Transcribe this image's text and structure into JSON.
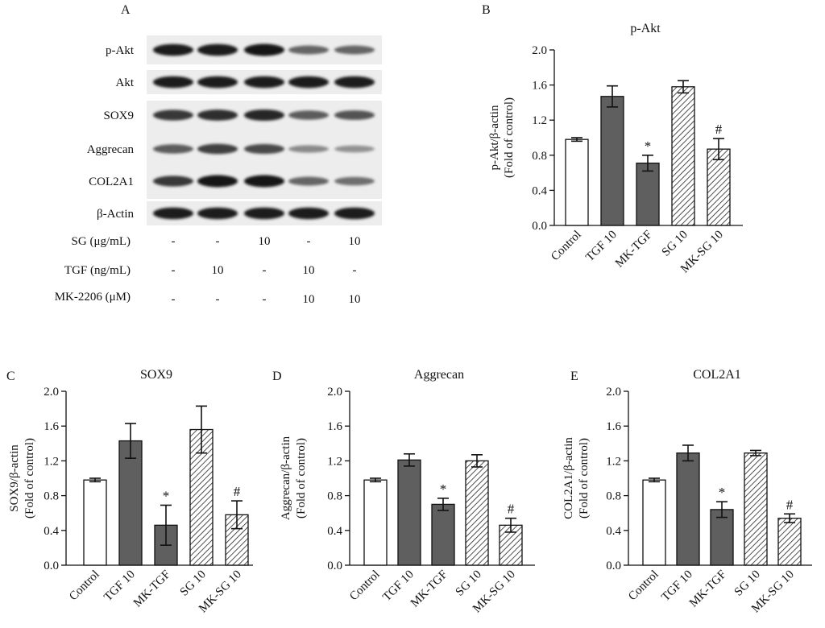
{
  "blot": {
    "panel_letter": "A",
    "rows": [
      {
        "label": "p-Akt",
        "intensity": [
          0.95,
          0.95,
          1.0,
          0.55,
          0.55
        ]
      },
      {
        "label": "Akt",
        "intensity": [
          0.95,
          0.95,
          0.95,
          0.95,
          0.95
        ]
      },
      {
        "label": "SOX9",
        "intensity": [
          0.8,
          0.85,
          0.9,
          0.6,
          0.65
        ]
      },
      {
        "label": "Aggrecan",
        "intensity": [
          0.6,
          0.75,
          0.7,
          0.35,
          0.3
        ]
      },
      {
        "label": "COL2A1",
        "intensity": [
          0.8,
          1.0,
          1.0,
          0.55,
          0.5
        ]
      },
      {
        "label": "β-Actin",
        "intensity": [
          0.95,
          0.95,
          0.95,
          0.95,
          0.95
        ]
      }
    ],
    "treatments": [
      {
        "label": "SG (μg/mL)",
        "values": [
          "-",
          "-",
          "10",
          "-",
          "10"
        ]
      },
      {
        "label": "TGF (ng/mL)",
        "values": [
          "-",
          "10",
          "-",
          "10",
          "-"
        ]
      },
      {
        "label": "MK-2206 (μM)",
        "values": [
          "-",
          "-",
          "-",
          "10",
          "10"
        ]
      }
    ]
  },
  "chart_data": [
    {
      "panel_letter": "B",
      "type": "bar",
      "title": "p-Akt",
      "ylabel_line1": "p-Akt/β-actin",
      "ylabel_line2": "(Fold of control)",
      "categories": [
        "Control",
        "TGF 10",
        "MK-TGF",
        "SG 10",
        "MK-SG 10"
      ],
      "values": [
        0.98,
        1.47,
        0.71,
        1.58,
        0.87
      ],
      "errors": [
        0.02,
        0.12,
        0.09,
        0.07,
        0.12
      ],
      "fills": [
        "white",
        "gray",
        "gray",
        "hatch",
        "hatch"
      ],
      "annotations": [
        "",
        "",
        "*",
        "",
        "#"
      ],
      "yticks": [
        "0.0",
        "0.4",
        "0.8",
        "1.2",
        "1.6",
        "2.0"
      ],
      "ylim": [
        0,
        2.0
      ]
    },
    {
      "panel_letter": "C",
      "type": "bar",
      "title": "SOX9",
      "ylabel_line1": "SOX9/β-actin",
      "ylabel_line2": "(Fold of control)",
      "categories": [
        "Control",
        "TGF 10",
        "MK-TGF",
        "SG 10",
        "MK-SG 10"
      ],
      "values": [
        0.98,
        1.43,
        0.46,
        1.56,
        0.58
      ],
      "errors": [
        0.02,
        0.2,
        0.23,
        0.27,
        0.16
      ],
      "fills": [
        "white",
        "gray",
        "gray",
        "hatch",
        "hatch"
      ],
      "annotations": [
        "",
        "",
        "*",
        "",
        "#"
      ],
      "yticks": [
        "0.0",
        "0.4",
        "0.8",
        "1.2",
        "1.6",
        "2.0"
      ],
      "ylim": [
        0,
        2.0
      ]
    },
    {
      "panel_letter": "D",
      "type": "bar",
      "title": "Aggrecan",
      "ylabel_line1": "Aggrecan/β-actin",
      "ylabel_line2": "(Fold of control)",
      "categories": [
        "Control",
        "TGF 10",
        "MK-TGF",
        "SG 10",
        "MK-SG 10"
      ],
      "values": [
        0.98,
        1.21,
        0.7,
        1.2,
        0.46
      ],
      "errors": [
        0.02,
        0.07,
        0.07,
        0.07,
        0.08
      ],
      "fills": [
        "white",
        "gray",
        "gray",
        "hatch",
        "hatch"
      ],
      "annotations": [
        "",
        "",
        "*",
        "",
        "#"
      ],
      "yticks": [
        "0.0",
        "0.4",
        "0.8",
        "1.2",
        "1.6",
        "2.0"
      ],
      "ylim": [
        0,
        2.0
      ]
    },
    {
      "panel_letter": "E",
      "type": "bar",
      "title": "COL2A1",
      "ylabel_line1": "COL2A1/β-actin",
      "ylabel_line2": "(Fold of control)",
      "categories": [
        "Control",
        "TGF 10",
        "MK-TGF",
        "SG 10",
        "MK-SG 10"
      ],
      "values": [
        0.98,
        1.29,
        0.64,
        1.29,
        0.54
      ],
      "errors": [
        0.02,
        0.09,
        0.09,
        0.03,
        0.05
      ],
      "fills": [
        "white",
        "gray",
        "gray",
        "hatch",
        "hatch"
      ],
      "annotations": [
        "",
        "",
        "*",
        "",
        "#"
      ],
      "yticks": [
        "0.0",
        "0.4",
        "0.8",
        "1.2",
        "1.6",
        "2.0"
      ],
      "ylim": [
        0,
        2.0
      ]
    }
  ],
  "colors": {
    "dark_bar": "#5f5f5f",
    "axis": "#111111",
    "band": "#1e1e1e"
  }
}
